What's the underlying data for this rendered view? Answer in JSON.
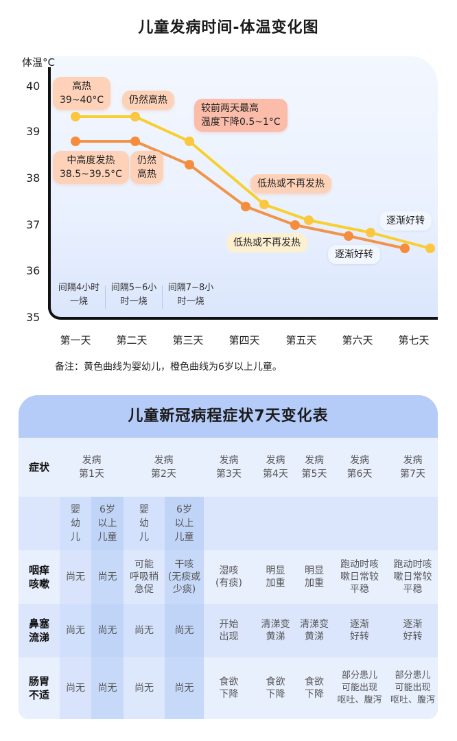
{
  "chart_title": "儿童发病时间-体温变化图",
  "chart_data": {
    "type": "line",
    "title": "儿童发病时间-体温变化图",
    "xlabel": "",
    "ylabel": "体温°C",
    "ylim": [
      35,
      40
    ],
    "yticks": [
      "40",
      "39",
      "38",
      "37",
      "36",
      "35"
    ],
    "categories": [
      "第一天",
      "第二天",
      "第三天",
      "第四天",
      "第五天",
      "第六天",
      "第七天"
    ],
    "series": [
      {
        "name": "婴幼儿 (黄色曲线)",
        "color": "#f7cf2e",
        "marker_color": "#fbc640",
        "values": [
          39.3,
          39.3,
          38.8,
          37.45,
          37.1,
          36.85,
          36.5
        ]
      },
      {
        "name": "6岁以上儿童 (橙色曲线)",
        "color": "#f0944a",
        "marker_color": "#f58d3c",
        "values": [
          38.8,
          38.8,
          38.3,
          37.4,
          37.0,
          36.75,
          36.5
        ]
      }
    ],
    "annotations": [
      {
        "text": "高热\n39~40°C",
        "style": "peach"
      },
      {
        "text": "仍然高热",
        "style": "peach"
      },
      {
        "text": "较前两天最高\n温度下降0.5~1°C",
        "style": "red"
      },
      {
        "text": "低热或不再发热",
        "style": "peach"
      },
      {
        "text": "逐渐好转",
        "style": "white"
      },
      {
        "text": "中高度发热\n38.5~39.5°C",
        "style": "peach"
      },
      {
        "text": "仍然\n高热",
        "style": "peach"
      },
      {
        "text": "低热或不再发热",
        "style": "cream"
      },
      {
        "text": "逐渐好转",
        "style": "white"
      }
    ],
    "intervals": [
      "间隔4小时\n一烧",
      "间隔5~6小\n时一烧",
      "间隔7~8小\n时一烧"
    ],
    "grid": false,
    "legend": "none"
  },
  "chart": {
    "ylabel": "体温°C",
    "yticks": [
      "40",
      "39",
      "38",
      "37",
      "36",
      "35"
    ],
    "xticks": [
      "第一天",
      "第二天",
      "第三天",
      "第四天",
      "第五天",
      "第六天",
      "第七天"
    ],
    "bubbles": {
      "high_title": "高热",
      "high_range": "39~40°C",
      "still_high": "仍然高热",
      "drop_l1": "较前两天最高",
      "drop_l2": "温度下降0.5~1°C",
      "low_yellow": "低热或不再发热",
      "improve_yellow": "逐渐好转",
      "mid_title": "中高度发热",
      "mid_range": "38.5~39.5°C",
      "still_high_o1": "仍然",
      "still_high_o2": "高热",
      "low_orange": "低热或不再发热",
      "improve_orange": "逐渐好转"
    },
    "intervals": [
      {
        "l1": "间隔4小时",
        "l2": "一烧"
      },
      {
        "l1": "间隔5~6小",
        "l2": "时一烧"
      },
      {
        "l1": "间隔7~8小",
        "l2": "时一烧"
      }
    ],
    "note": "备注：黄色曲线为婴幼儿，橙色曲线为6岁以上儿童。"
  },
  "table": {
    "title": "儿童新冠病程症状7天变化表",
    "header": {
      "symptom": "症状",
      "days": [
        {
          "l1": "发病",
          "l2": "第1天"
        },
        {
          "l1": "发病",
          "l2": "第2天"
        },
        {
          "l1": "发病",
          "l2": "第3天"
        },
        {
          "l1": "发病",
          "l2": "第4天"
        },
        {
          "l1": "发病",
          "l2": "第5天"
        },
        {
          "l1": "发病",
          "l2": "第6天"
        },
        {
          "l1": "发病",
          "l2": "第7天"
        }
      ]
    },
    "subheader": [
      {
        "l1": "婴",
        "l2": "幼",
        "l3": "儿"
      },
      {
        "l1": "6岁",
        "l2": "以上",
        "l3": "儿童"
      },
      {
        "l1": "婴",
        "l2": "幼",
        "l3": "儿"
      },
      {
        "l1": "6岁",
        "l2": "以上",
        "l3": "儿童"
      }
    ],
    "rows": [
      {
        "symptom": {
          "l1": "咽痒",
          "l2": "咳嗽"
        },
        "cells": [
          [
            "尚无"
          ],
          [
            "尚无"
          ],
          [
            "可能",
            "呼吸稍",
            "急促"
          ],
          [
            "干咳",
            "(无痰或",
            "少痰)"
          ],
          [
            "湿咳",
            "(有痰)"
          ],
          [
            "明显",
            "加重"
          ],
          [
            "明显",
            "加重"
          ],
          [
            "跑动时咳",
            "嗽日常较",
            "平稳"
          ],
          [
            "跑动时咳",
            "嗽日常较",
            "平稳"
          ]
        ]
      },
      {
        "symptom": {
          "l1": "鼻塞",
          "l2": "流涕"
        },
        "cells": [
          [
            "尚无"
          ],
          [
            "尚无"
          ],
          [
            "尚无"
          ],
          [
            "尚无"
          ],
          [
            "开始",
            "出现"
          ],
          [
            "清涕变",
            "黄涕"
          ],
          [
            "清涕变",
            "黄涕"
          ],
          [
            "逐渐",
            "好转"
          ],
          [
            "逐渐",
            "好转"
          ]
        ]
      },
      {
        "symptom": {
          "l1": "肠胃",
          "l2": "不适"
        },
        "cells": [
          [
            "尚无"
          ],
          [
            "尚无"
          ],
          [
            "尚无"
          ],
          [
            "尚无"
          ],
          [
            "食欲",
            "下降"
          ],
          [
            "食欲",
            "下降"
          ],
          [
            "食欲",
            "下降"
          ],
          [
            "部分患儿",
            "可能出现",
            "呕吐、腹泻"
          ],
          [
            "部分患儿",
            "可能出现",
            "呕吐、腹泻"
          ]
        ]
      }
    ]
  }
}
